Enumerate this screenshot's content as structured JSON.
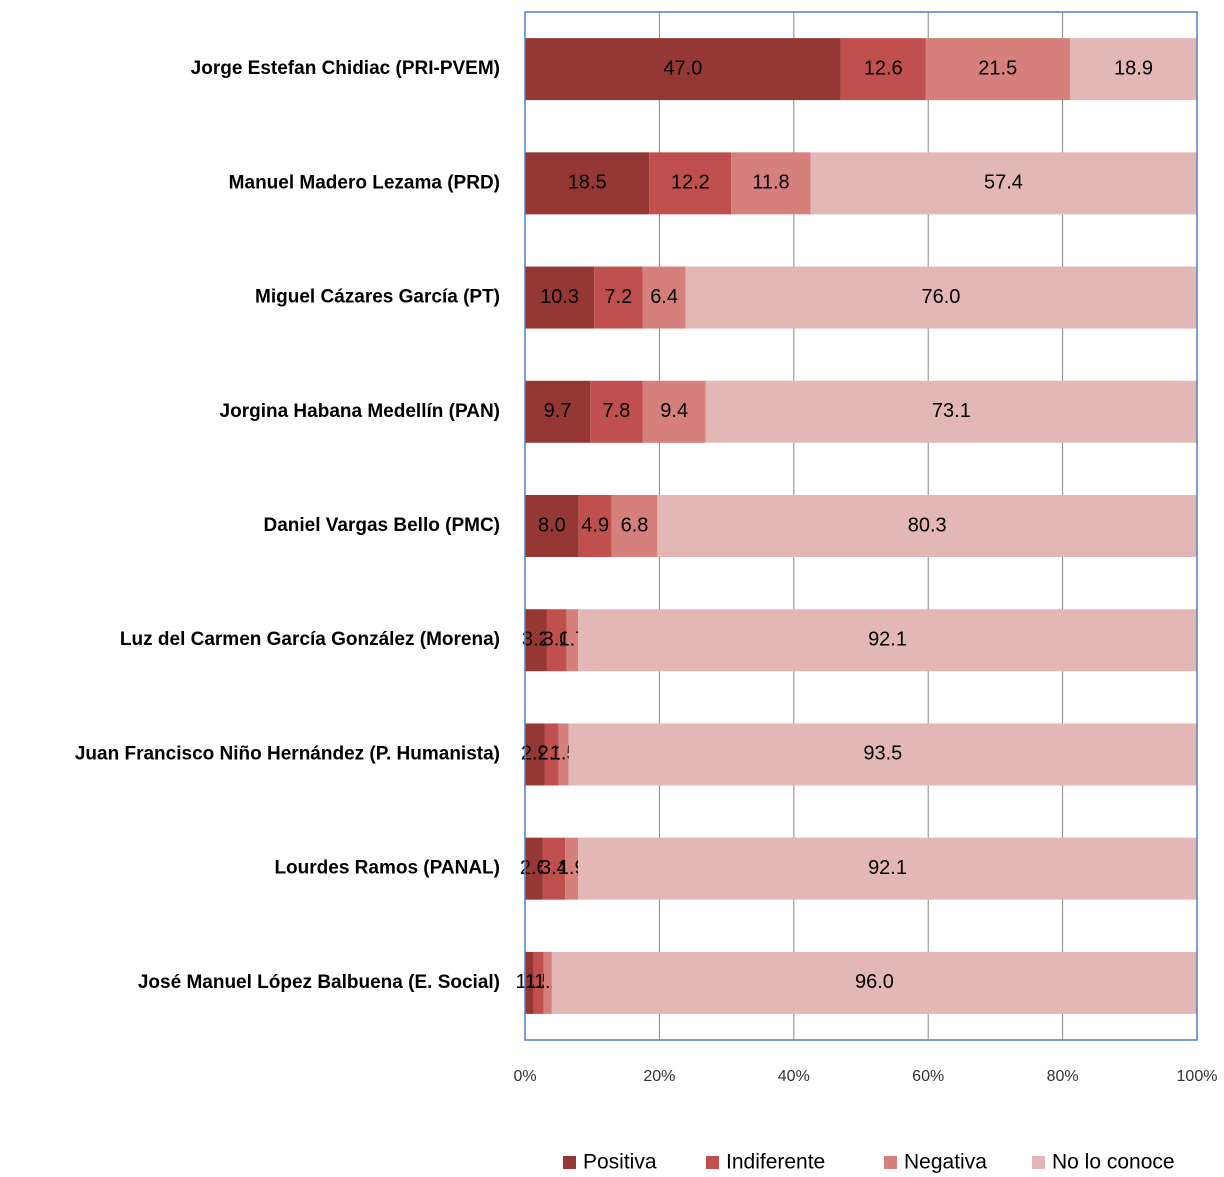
{
  "chart_data": {
    "type": "stacked-barh",
    "categories": [
      "Jorge Estefan Chidiac (PRI-PVEM)",
      "Manuel Madero Lezama (PRD)",
      "Miguel Cázares García (PT)",
      "Jorgina Habana Medellín (PAN)",
      "Daniel Vargas Bello (PMC)",
      "Luz del Carmen García González (Morena)",
      "Juan Francisco Niño Hernández (P. Humanista)",
      "Lourdes Ramos (PANAL)",
      "José Manuel López Balbuena (E. Social)"
    ],
    "series": [
      {
        "name": "Positiva",
        "color": "#953735",
        "values": [
          47.0,
          18.5,
          10.3,
          9.7,
          8.0,
          3.2,
          2.9,
          2.6,
          1.3
        ],
        "value_labels": [
          "47.0",
          "18.5",
          "10.3",
          "9.7",
          "8.0",
          "3.2",
          "2.9",
          "2.6",
          "1.3"
        ]
      },
      {
        "name": "Indiferente",
        "color": "#c0504d",
        "values": [
          12.6,
          12.2,
          7.2,
          7.8,
          4.9,
          3.0,
          2.1,
          3.4,
          1.5
        ],
        "value_labels": [
          "12.6",
          "12.2",
          "7.2",
          "7.8",
          "4.9",
          "3.0",
          "2.1",
          "3.4",
          "1.5"
        ]
      },
      {
        "name": "Negativa",
        "color": "#d6807e",
        "values": [
          21.5,
          11.8,
          6.4,
          9.4,
          6.8,
          1.7,
          1.5,
          1.9,
          1.2
        ],
        "value_labels": [
          "21.5",
          "11.8",
          "6.4",
          "9.4",
          "6.8",
          "1.7",
          "1.5",
          "1.9",
          "1.2"
        ]
      },
      {
        "name": "No lo conoce",
        "color": "#e3b7b6",
        "values": [
          18.9,
          57.4,
          76.0,
          73.1,
          80.3,
          92.1,
          93.5,
          92.1,
          96.0
        ],
        "value_labels": [
          "18.9",
          "57.4",
          "76.0",
          "73.1",
          "80.3",
          "92.1",
          "93.5",
          "92.1",
          "96.0"
        ]
      }
    ],
    "xlim": [
      0,
      100
    ],
    "xticks": [
      {
        "value": 0,
        "label": "0%"
      },
      {
        "value": 20,
        "label": "20%"
      },
      {
        "value": 40,
        "label": "40%"
      },
      {
        "value": 60,
        "label": "60%"
      },
      {
        "value": 80,
        "label": "80%"
      },
      {
        "value": 100,
        "label": "100%"
      }
    ],
    "grid": true,
    "legend": "bottom"
  }
}
